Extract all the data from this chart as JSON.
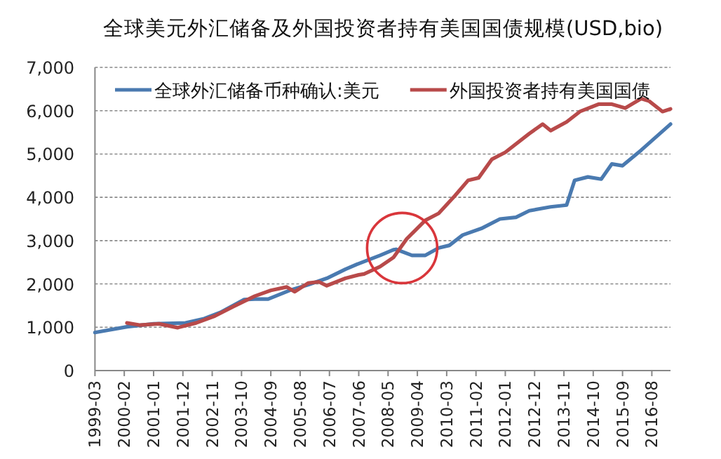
{
  "chart_data": {
    "type": "line",
    "title": "全球美元外汇储备及外国投资者持有美国国债规模(USD,bio)",
    "xlim": [
      "1999-03",
      "2017-03"
    ],
    "xticks": [
      "1999-03",
      "2000-02",
      "2001-01",
      "2001-12",
      "2002-11",
      "2003-10",
      "2004-09",
      "2005-08",
      "2006-07",
      "2007-06",
      "2008-05",
      "2009-04",
      "2010-03",
      "2011-02",
      "2012-01",
      "2012-12",
      "2013-11",
      "2014-10",
      "2015-09",
      "2016-08"
    ],
    "ylim": [
      0,
      7000
    ],
    "yticks": [
      {
        "value": 0,
        "label": "0"
      },
      {
        "value": 1000,
        "label": "1,000"
      },
      {
        "value": 2000,
        "label": "2,000"
      },
      {
        "value": 3000,
        "label": "3,000"
      },
      {
        "value": 4000,
        "label": "4,000"
      },
      {
        "value": 5000,
        "label": "5,000"
      },
      {
        "value": 6000,
        "label": "6,000"
      },
      {
        "value": 7000,
        "label": "7,000"
      }
    ],
    "grid": "y",
    "legend": "top",
    "marker": "none",
    "line_style": "solid",
    "series": [
      {
        "name": "全球外汇储备币种确认:美元",
        "color": "#4a7ab0",
        "x": [
          "1999-03",
          "2000-03",
          "2001-01",
          "2002-01",
          "2002-08",
          "2003-02",
          "2003-11",
          "2004-03",
          "2004-08",
          "2005-04",
          "2005-11",
          "2006-06",
          "2007-01",
          "2007-06",
          "2008-02",
          "2008-07",
          "2008-08",
          "2009-02",
          "2009-07",
          "2009-12",
          "2010-04",
          "2010-09",
          "2011-04",
          "2011-11",
          "2012-05",
          "2012-10",
          "2013-06",
          "2013-12",
          "2014-03",
          "2014-08",
          "2015-01",
          "2015-05",
          "2015-09",
          "2016-04",
          "2017-03"
        ],
        "values": [
          880,
          1010,
          1080,
          1100,
          1200,
          1340,
          1640,
          1650,
          1650,
          1850,
          1980,
          2130,
          2340,
          2470,
          2660,
          2790,
          2800,
          2660,
          2660,
          2830,
          2890,
          3130,
          3280,
          3500,
          3540,
          3690,
          3780,
          3820,
          4390,
          4470,
          4420,
          4770,
          4730,
          5090,
          5690
        ]
      },
      {
        "name": "外国投资者持有美国国债",
        "color": "#b84a4a",
        "x": [
          "2000-03",
          "2000-08",
          "2001-03",
          "2001-10",
          "2002-05",
          "2002-12",
          "2003-07",
          "2004-03",
          "2004-09",
          "2005-03",
          "2005-06",
          "2005-11",
          "2006-03",
          "2006-06",
          "2007-01",
          "2007-06",
          "2007-08",
          "2008-02",
          "2008-07",
          "2008-12",
          "2009-07",
          "2009-12",
          "2010-06",
          "2010-11",
          "2011-03",
          "2011-08",
          "2012-01",
          "2012-10",
          "2013-03",
          "2013-06",
          "2013-12",
          "2014-05",
          "2014-12",
          "2015-05",
          "2015-10",
          "2016-04",
          "2016-07",
          "2016-12",
          "2017-03"
        ],
        "values": [
          1100,
          1050,
          1080,
          990,
          1100,
          1260,
          1480,
          1720,
          1850,
          1930,
          1820,
          2020,
          2050,
          1960,
          2130,
          2210,
          2230,
          2400,
          2610,
          3040,
          3470,
          3630,
          4030,
          4390,
          4450,
          4880,
          5040,
          5470,
          5690,
          5540,
          5740,
          5980,
          6150,
          6150,
          6060,
          6280,
          6220,
          5980,
          6040
        ]
      }
    ]
  }
}
